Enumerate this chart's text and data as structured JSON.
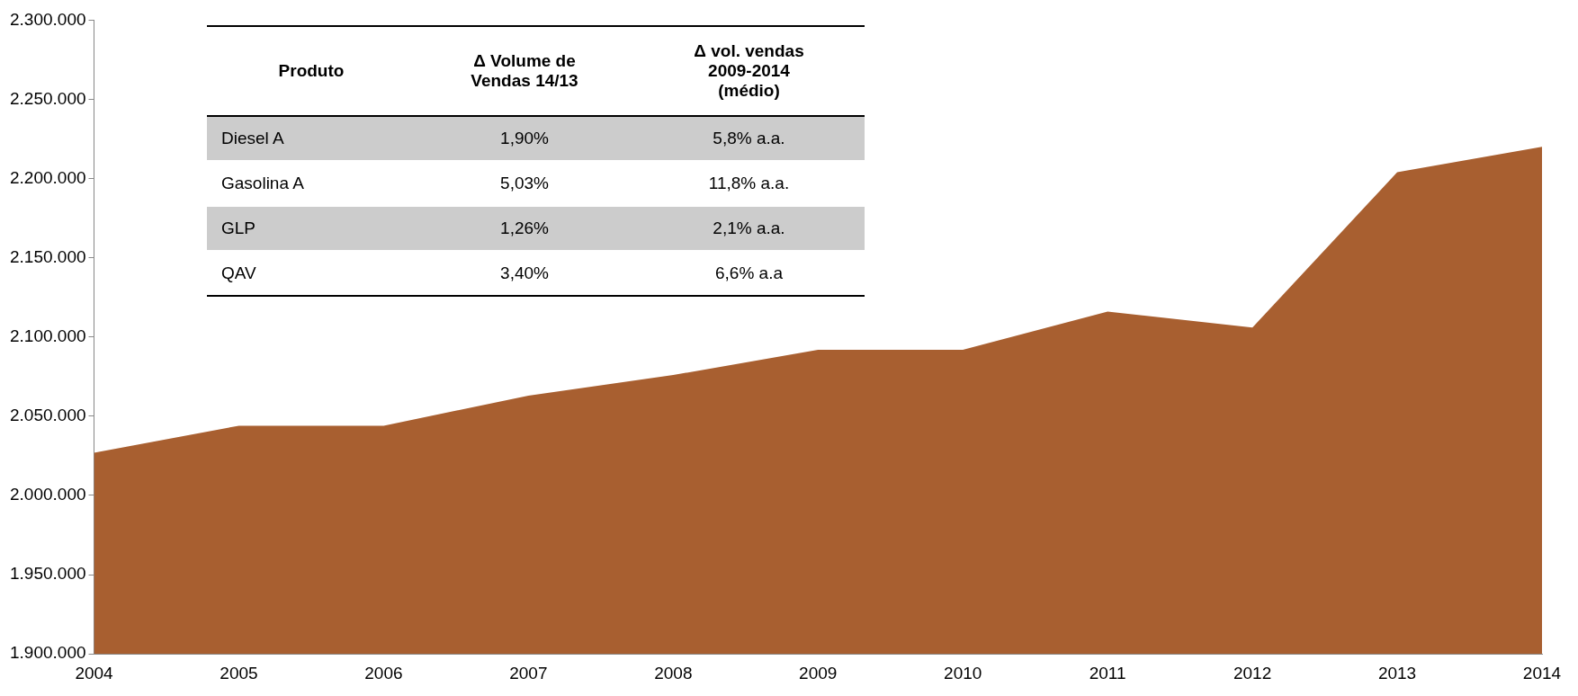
{
  "chart_data": [
    {
      "type": "area",
      "x": [
        2004,
        2005,
        2006,
        2007,
        2008,
        2009,
        2010,
        2011,
        2012,
        2013,
        2014
      ],
      "series": [
        {
          "color": "#a85f30",
          "values": [
            2027000,
            2044000,
            2044000,
            2063000,
            2076000,
            2092000,
            2092000,
            2116000,
            2106000,
            2204000,
            2220000
          ]
        }
      ],
      "xlim": [
        2004,
        2014
      ],
      "xticks": [
        2004,
        2005,
        2006,
        2007,
        2008,
        2009,
        2010,
        2011,
        2012,
        2013,
        2014
      ],
      "ylim": [
        1900000,
        2300000
      ],
      "yticks": [
        {
          "value": 1900000,
          "label": "1.900.000"
        },
        {
          "value": 1950000,
          "label": "1.950.000"
        },
        {
          "value": 2000000,
          "label": "2.000.000"
        },
        {
          "value": 2050000,
          "label": "2.050.000"
        },
        {
          "value": 2100000,
          "label": "2.100.000"
        },
        {
          "value": 2150000,
          "label": "2.150.000"
        },
        {
          "value": 2200000,
          "label": "2.200.000"
        },
        {
          "value": 2250000,
          "label": "2.250.000"
        },
        {
          "value": 2300000,
          "label": "2.300.000"
        }
      ],
      "grid": false,
      "legend": false
    },
    {
      "type": "other",
      "annotations": [
        "Produto",
        "Δ Volume de Vendas 14/13",
        "Δ vol. vendas 2009-2014 (médio)",
        "Diesel A",
        "1,90%",
        "5,8% a.a.",
        "Gasolina A",
        "5,03%",
        "11,8% a.a.",
        "GLP",
        "1,26%",
        "2,1% a.a.",
        "QAV",
        "3,40%",
        "6,6% a.a"
      ]
    }
  ]
}
